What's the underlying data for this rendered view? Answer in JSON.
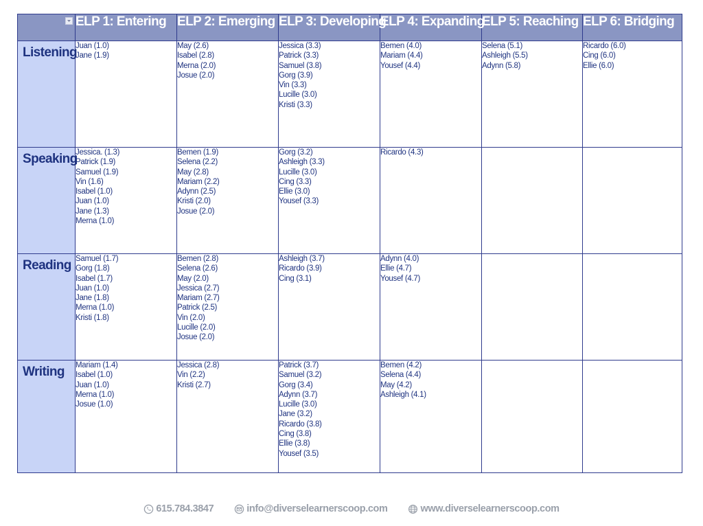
{
  "icons": {
    "filter": "filter-dropdown-icon",
    "phone": "phone-icon",
    "email": "email-icon",
    "web": "globe-icon"
  },
  "colors": {
    "header_bg": "#8a96c3",
    "row_header_bg": "#c8d4f7",
    "text": "#1f3380",
    "border": "#2e3a8c",
    "footer_text": "#9aa0aa"
  },
  "headers": [
    "ELP 1: Entering",
    "ELP 2: Emerging",
    "ELP 3: Developing",
    "ELP 4: Expanding",
    "ELP 5: Reaching",
    "ELP 6: Bridging"
  ],
  "rows": [
    {
      "label": "Listening",
      "cells": [
        [
          "Juan (1.0)",
          "Jane (1.9)"
        ],
        [
          "May (2.6)",
          "Isabel (2.8)",
          "Merna (2.0)",
          "Josue (2.0)"
        ],
        [
          "Jessica (3.3)",
          "Patrick (3.3)",
          "Samuel (3.8)",
          "Gorg (3.9)",
          "Vin (3.3)",
          "Lucille (3.0)",
          "Kristi (3.3)"
        ],
        [
          "Bemen (4.0)",
          "Mariam (4.4)",
          "Yousef (4.4)"
        ],
        [
          "Selena (5.1)",
          "Ashleigh (5.5)",
          "Adynn (5.8)"
        ],
        [
          "Ricardo (6.0)",
          "Cing (6.0)",
          "Ellie (6.0)"
        ]
      ]
    },
    {
      "label": "Speaking",
      "cells": [
        [
          "Jessica. (1.3)",
          "Patrick (1.9)",
          "Samuel (1.9)",
          "Vin (1.6)",
          "Isabel (1.0)",
          "Juan (1.0)",
          "Jane (1.3)",
          "Merna (1.0)"
        ],
        [
          "Bemen (1.9)",
          "Selena (2.2)",
          "May (2.8)",
          "Mariam (2.2)",
          "Adynn (2.5)",
          "Kristi (2.0)",
          " Josue (2.0)"
        ],
        [
          "Gorg (3.2)",
          "Ashleigh (3.3)",
          "Lucille (3.0)",
          "Cing (3.3)",
          "Ellie (3.0)",
          "Yousef (3.3)"
        ],
        [
          "Ricardo (4.3)"
        ],
        [],
        []
      ]
    },
    {
      "label": "Reading",
      "cells": [
        [
          "Samuel (1.7)",
          "Gorg (1.8)",
          "Isabel (1.7)",
          "Juan (1.0)",
          "Jane (1.8)",
          "Merna (1.0)",
          "Kristi (1.8)"
        ],
        [
          "Bemen (2.8)",
          "Selena (2.6)",
          "May (2.0)",
          "Jessica (2.7)",
          "Mariam (2.7)",
          "Patrick (2.5)",
          "Vin (2.0)",
          "Lucille (2.0)",
          "Josue (2.0)"
        ],
        [
          "Ashleigh (3.7)",
          "Ricardo (3.9)",
          "Cing (3.1)"
        ],
        [
          "Adynn (4.0)",
          "Ellie (4.7)",
          "Yousef (4.7)"
        ],
        [],
        []
      ]
    },
    {
      "label": "Writing",
      "cells": [
        [
          "Mariam (1.4)",
          "Isabel (1.0)",
          "Juan (1.0)",
          "Merna (1.0)",
          "Josue (1.0)"
        ],
        [
          "Jessica (2.8)",
          "Vin (2.2)",
          "Kristi (2.7)"
        ],
        [
          "Patrick (3.7)",
          "Samuel (3.2)",
          "Gorg (3.4)",
          "Adynn (3.7)",
          "Lucille (3.0)",
          "Jane (3.2)",
          "Ricardo (3.8)",
          "Cing (3.8)",
          "Ellie (3.8)",
          "Yousef (3.5)"
        ],
        [
          "Bemen (4.2)",
          "Selena (4.4)",
          "May (4.2)",
          "Ashleigh (4.1)"
        ],
        [],
        []
      ]
    }
  ],
  "footer": {
    "phone": "615.784.3847",
    "email": "info@diverselearnerscoop.com",
    "website": "www.diverselearnerscoop.com"
  }
}
